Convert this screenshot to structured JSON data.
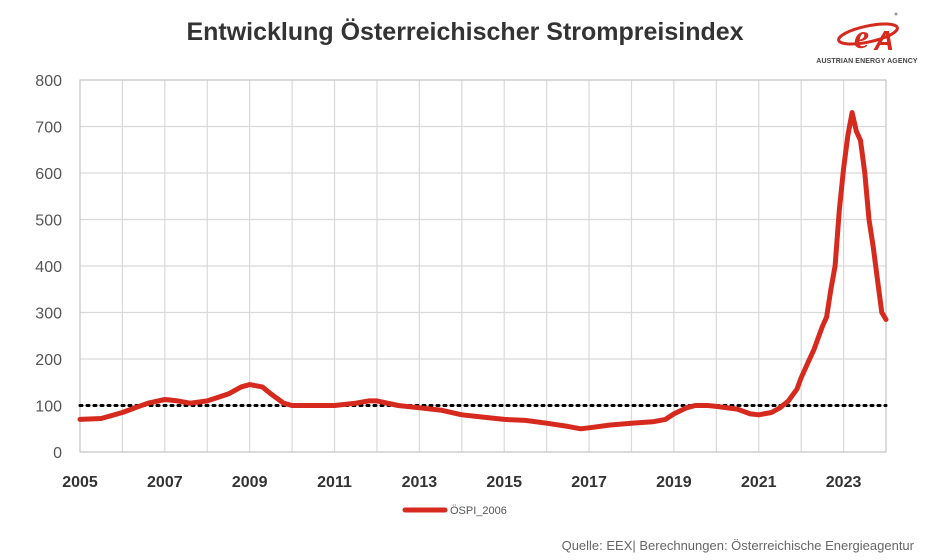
{
  "title": "Entwicklung Österreichischer Strompreisindex",
  "logo": {
    "text": "AUSTRIAN ENERGY AGENCY",
    "brand_color": "#d62a1e"
  },
  "source": "Quelle: EEX| Berechnungen: Österreichische Energieagentur",
  "chart_data": {
    "type": "line",
    "title": "Entwicklung Österreichischer Strompreisindex",
    "xlabel": "",
    "ylabel": "",
    "xlim": [
      2005,
      2024
    ],
    "ylim": [
      0,
      800
    ],
    "x_ticks": [
      "2005",
      "2007",
      "2009",
      "2011",
      "2013",
      "2015",
      "2017",
      "2019",
      "2021",
      "2023"
    ],
    "y_ticks": [
      "0",
      "100",
      "200",
      "300",
      "400",
      "500",
      "600",
      "700",
      "800"
    ],
    "grid": true,
    "legend_position": "bottom",
    "reference_line": {
      "y": 100,
      "style": "dotted",
      "color": "#000000"
    },
    "series": [
      {
        "name": "ÖSPI_2006",
        "color": "#d62a1e",
        "x": [
          2005.0,
          2005.5,
          2006.0,
          2006.3,
          2006.6,
          2007.0,
          2007.3,
          2007.6,
          2008.0,
          2008.5,
          2008.8,
          2009.0,
          2009.3,
          2009.5,
          2009.8,
          2010.0,
          2010.5,
          2011.0,
          2011.5,
          2011.8,
          2012.0,
          2012.5,
          2013.0,
          2013.5,
          2014.0,
          2014.5,
          2015.0,
          2015.5,
          2016.0,
          2016.5,
          2016.8,
          2017.0,
          2017.5,
          2018.0,
          2018.5,
          2018.8,
          2019.0,
          2019.3,
          2019.5,
          2019.8,
          2020.0,
          2020.5,
          2020.8,
          2021.0,
          2021.3,
          2021.5,
          2021.7,
          2021.9,
          2022.0,
          2022.2,
          2022.3,
          2022.5,
          2022.6,
          2022.7,
          2022.8,
          2022.9,
          2023.0,
          2023.1,
          2023.2,
          2023.3,
          2023.4,
          2023.5,
          2023.6,
          2023.7,
          2023.8,
          2023.9,
          2024.0
        ],
        "values": [
          70,
          72,
          85,
          95,
          105,
          113,
          110,
          105,
          110,
          125,
          140,
          145,
          140,
          125,
          105,
          100,
          100,
          100,
          105,
          110,
          110,
          100,
          95,
          90,
          80,
          75,
          70,
          68,
          62,
          55,
          50,
          52,
          58,
          62,
          65,
          70,
          82,
          95,
          100,
          100,
          98,
          92,
          82,
          80,
          85,
          95,
          110,
          135,
          160,
          200,
          220,
          270,
          290,
          350,
          400,
          520,
          610,
          680,
          730,
          690,
          670,
          600,
          500,
          440,
          370,
          300,
          285
        ]
      }
    ]
  }
}
